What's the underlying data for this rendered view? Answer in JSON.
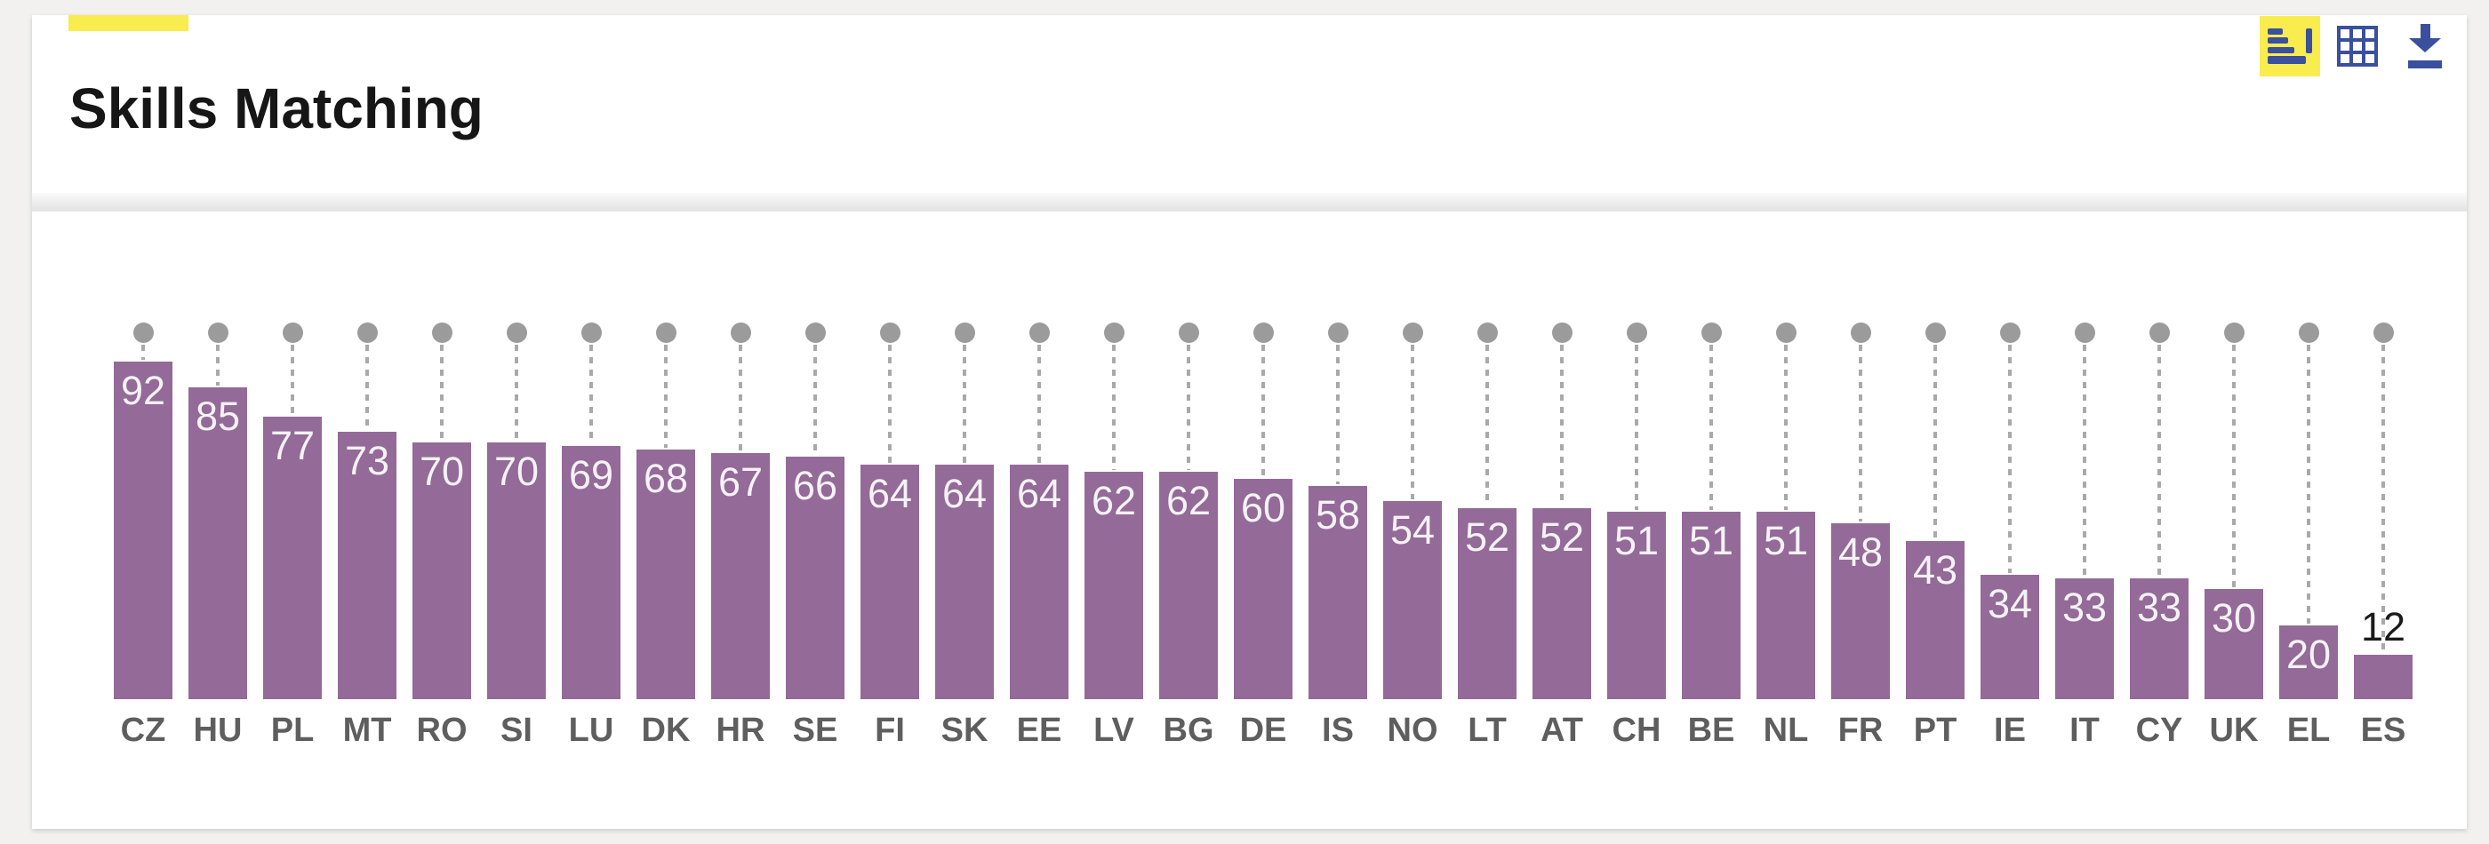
{
  "page": {
    "background_color": "#f2f1ef",
    "card_color": "#ffffff"
  },
  "header": {
    "title": "Skills Matching",
    "accent_color": "#f9ec4e"
  },
  "toolbar": {
    "chart_view": {
      "label": "Bar chart view",
      "active": true,
      "icon": "bar-chart-icon",
      "active_bg": "#f9ec4e"
    },
    "table_view": {
      "label": "Table view",
      "icon": "table-grid-icon"
    },
    "download": {
      "label": "Download",
      "icon": "download-icon"
    },
    "icon_color": "#3a4f9e"
  },
  "chart_data": {
    "type": "bar",
    "variant": "lollipop-with-reference-dots",
    "title": "Skills Matching",
    "categories": [
      "CZ",
      "HU",
      "PL",
      "MT",
      "RO",
      "SI",
      "LU",
      "DK",
      "HR",
      "SE",
      "FI",
      "SK",
      "EE",
      "LV",
      "BG",
      "DE",
      "IS",
      "NO",
      "LT",
      "AT",
      "CH",
      "BE",
      "NL",
      "FR",
      "PT",
      "IE",
      "IT",
      "CY",
      "UK",
      "EL",
      "ES"
    ],
    "values": [
      92,
      85,
      77,
      73,
      70,
      70,
      69,
      68,
      67,
      66,
      64,
      64,
      64,
      62,
      62,
      60,
      58,
      54,
      52,
      52,
      51,
      51,
      51,
      48,
      43,
      34,
      33,
      33,
      30,
      20,
      12
    ],
    "reference_value": 100,
    "ylim": [
      0,
      100
    ],
    "grid": false,
    "legend": "none",
    "value_labels": "inside-bar-top (outside above bar when bar too short, e.g. ES 12)",
    "bar_color": "#936a98",
    "dot_color": "#9b9b9b",
    "dashed_line_color": "#a9a9a9",
    "value_label_color_inside": "#f5f2f5",
    "value_label_color_outside": "#1b1b1b",
    "category_label_color": "#5e5e5e"
  }
}
